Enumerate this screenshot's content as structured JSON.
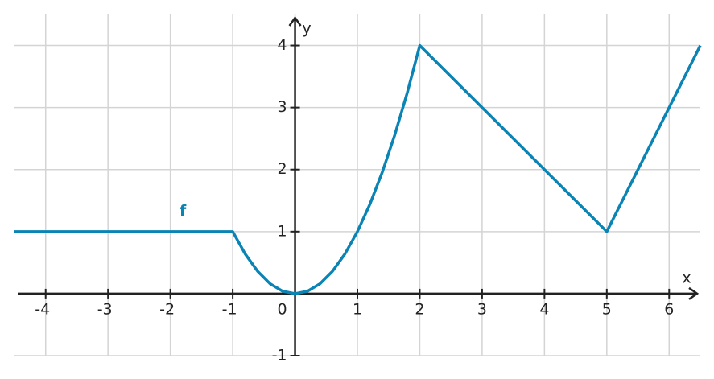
{
  "chart_data": {
    "type": "line",
    "x": [
      -4.5,
      -1,
      -0.8,
      -0.6,
      -0.4,
      -0.2,
      0,
      0.2,
      0.4,
      0.6,
      0.8,
      1,
      1.2,
      1.4,
      1.6,
      1.8,
      2,
      5,
      6.5
    ],
    "series": [
      {
        "name": "f",
        "color": "#0a84b4",
        "values": [
          1,
          1,
          0.64,
          0.36,
          0.16,
          0.04,
          0,
          0.04,
          0.16,
          0.36,
          0.64,
          1,
          1.44,
          1.96,
          2.56,
          3.24,
          4,
          1,
          4
        ]
      }
    ],
    "xlim": [
      -4.5,
      6.5
    ],
    "ylim": [
      -1,
      4.5
    ],
    "xticks": [
      -4,
      -3,
      -2,
      -1,
      0,
      1,
      2,
      3,
      4,
      5,
      6
    ],
    "yticks": [
      -1,
      1,
      2,
      3,
      4
    ],
    "xlabel": "x",
    "ylabel": "y",
    "grid": true
  }
}
